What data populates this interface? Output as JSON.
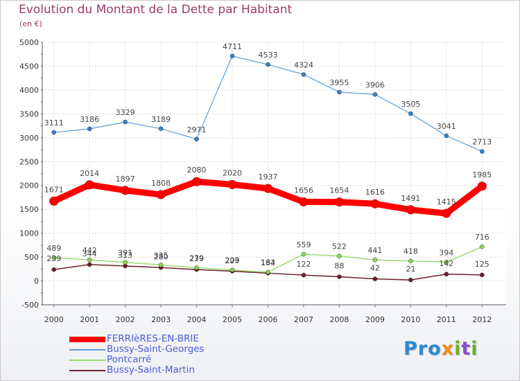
{
  "chart_data": {
    "type": "line",
    "title": "Evolution du Montant de la Dette par Habitant",
    "unit_label": "(en €)",
    "x": [
      "2000",
      "2001",
      "2002",
      "2003",
      "2004",
      "2005",
      "2006",
      "2007",
      "2008",
      "2009",
      "2010",
      "2011",
      "2012"
    ],
    "ylim": [
      -500,
      5000
    ],
    "yticks": [
      "-500",
      "0",
      "500",
      "1000",
      "1500",
      "2000",
      "2500",
      "3000",
      "3500",
      "4000",
      "4500",
      "5000"
    ],
    "grid": true,
    "legend_placement": "bottom-left",
    "series": [
      {
        "name": "FERRIèRES-EN-BRIE",
        "color": "#ff0000",
        "values": [
          1671,
          2014,
          1897,
          1808,
          2080,
          2020,
          1937,
          1656,
          1654,
          1616,
          1491,
          1415,
          1985
        ]
      },
      {
        "name": "Bussy-Saint-Georges",
        "color": "#5b9bd5",
        "values": [
          3111,
          3186,
          3329,
          3189,
          2971,
          4711,
          4533,
          4324,
          3955,
          3906,
          3505,
          3041,
          2713
        ]
      },
      {
        "name": "Pontcarré",
        "color": "#9ddc6e",
        "values": [
          489,
          442,
          391,
          335,
          279,
          229,
          184,
          559,
          522,
          441,
          418,
          394,
          716
        ]
      },
      {
        "name": "Bussy-Saint-Martin",
        "color": "#6b1f2a",
        "values": [
          239,
          344,
          313,
          280,
          239,
          203,
          163,
          122,
          88,
          42,
          21,
          142,
          125
        ]
      }
    ]
  },
  "logo": {
    "p1": "Pro",
    "p2": "x",
    "p3": "i",
    "p4": "t",
    "p5": "i"
  }
}
